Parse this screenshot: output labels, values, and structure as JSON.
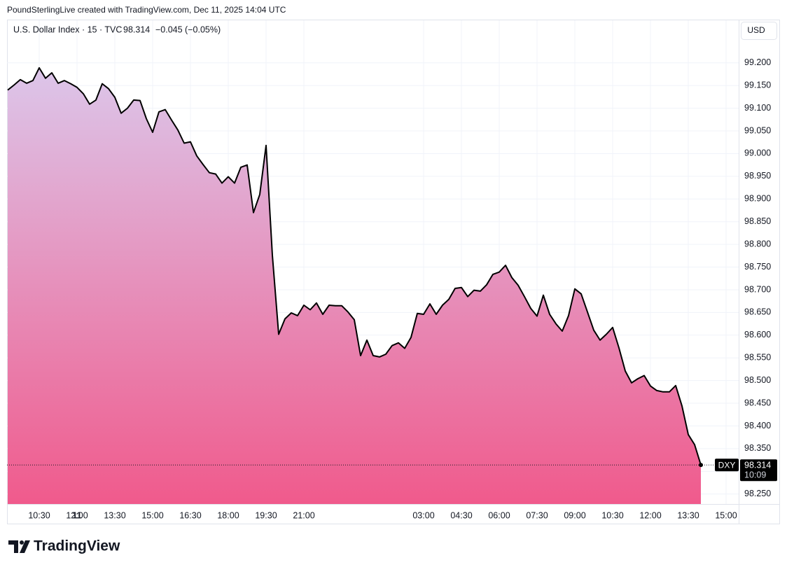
{
  "chart_data": {
    "type": "area",
    "credit": "PoundSterlingLive created with TradingView.com, Dec 11, 2025 14:04 UTC",
    "title": "U.S. Dollar Index · 15 · TVC",
    "change_label": "−0.045 (−0.05%)",
    "currency": "USD",
    "symbol": "DXY",
    "countdown": "10:09",
    "brand": "TradingView",
    "line_color": "#000000",
    "fill_top": "#dcc6ea",
    "fill_bottom": "#f05a8c",
    "grid": true,
    "xlim": [
      0,
      116
    ],
    "ylim": [
      98.228,
      99.249
    ],
    "xticks": [
      {
        "value": 5,
        "label": "10:30"
      },
      {
        "value": 11,
        "label": "12:00"
      },
      {
        "value": 17,
        "label": "13:30"
      },
      {
        "value": 23,
        "label": "15:00"
      },
      {
        "value": 29,
        "label": "16:30"
      },
      {
        "value": 35,
        "label": "18:00"
      },
      {
        "value": 41,
        "label": "19:30"
      },
      {
        "value": 47,
        "label": "21:00"
      },
      11,
      {
        "value": 66,
        "label": "03:00"
      },
      {
        "value": 72,
        "label": "04:30"
      },
      {
        "value": 78,
        "label": "06:00"
      },
      {
        "value": 84,
        "label": "07:30"
      },
      {
        "value": 90,
        "label": "09:00"
      },
      {
        "value": 96,
        "label": "10:30"
      },
      {
        "value": 102,
        "label": "12:00"
      },
      {
        "value": 108,
        "label": "13:30"
      },
      {
        "value": 114,
        "label": "15:00"
      }
    ],
    "yticks": [
      {
        "value": 98.25,
        "label": "98.250"
      },
      {
        "value": 98.3,
        "label": "98.300"
      },
      {
        "value": 98.35,
        "label": "98.350"
      },
      {
        "value": 98.4,
        "label": "98.400"
      },
      {
        "value": 98.45,
        "label": "98.450"
      },
      {
        "value": 98.5,
        "label": "98.500"
      },
      {
        "value": 98.55,
        "label": "98.550"
      },
      {
        "value": 98.6,
        "label": "98.600"
      },
      {
        "value": 98.65,
        "label": "98.650"
      },
      {
        "value": 98.7,
        "label": "98.700"
      },
      {
        "value": 98.75,
        "label": "98.750"
      },
      {
        "value": 98.8,
        "label": "98.800"
      },
      {
        "value": 98.85,
        "label": "98.850"
      },
      {
        "value": 98.9,
        "label": "98.900"
      },
      {
        "value": 98.95,
        "label": "98.950"
      },
      {
        "value": 99.0,
        "label": "99.000"
      },
      {
        "value": 99.05,
        "label": "99.050"
      },
      {
        "value": 99.1,
        "label": "99.100"
      },
      {
        "value": 99.15,
        "label": "99.150"
      },
      {
        "value": 99.2,
        "label": "99.200"
      }
    ],
    "x": [
      0,
      1,
      2,
      3,
      4,
      5,
      6,
      7,
      8,
      9,
      10,
      11,
      12,
      13,
      14,
      15,
      16,
      17,
      18,
      19,
      20,
      21,
      22,
      23,
      24,
      25,
      26,
      27,
      28,
      29,
      30,
      31,
      32,
      33,
      34,
      35,
      36,
      37,
      38,
      39,
      40,
      41,
      42,
      43,
      44,
      45,
      46,
      47,
      48,
      49,
      50,
      51,
      52,
      53,
      54,
      55,
      56,
      57,
      58,
      59,
      60,
      61,
      62,
      63,
      64,
      65,
      66,
      67,
      68,
      69,
      70,
      71,
      72,
      73,
      74,
      75,
      76,
      77,
      78,
      79,
      80,
      81,
      82,
      83,
      84,
      85,
      86,
      87,
      88,
      89,
      90,
      91,
      92,
      93,
      94,
      95,
      96,
      97,
      98,
      99,
      100,
      101,
      102,
      103,
      104,
      105,
      106,
      107,
      108,
      109,
      110
    ],
    "values": [
      99.14,
      99.151,
      99.163,
      99.155,
      99.161,
      99.189,
      99.166,
      99.178,
      99.155,
      99.161,
      99.154,
      99.146,
      99.132,
      99.109,
      99.118,
      99.154,
      99.143,
      99.124,
      99.089,
      99.1,
      99.118,
      99.117,
      99.077,
      99.047,
      99.092,
      99.097,
      99.074,
      99.052,
      99.023,
      99.026,
      98.995,
      98.976,
      98.958,
      98.955,
      98.935,
      98.949,
      98.935,
      98.97,
      98.975,
      98.87,
      98.91,
      99.018,
      98.776,
      98.602,
      98.636,
      98.649,
      98.643,
      98.666,
      98.656,
      98.671,
      98.646,
      98.666,
      98.665,
      98.665,
      98.651,
      98.634,
      98.555,
      98.589,
      98.555,
      98.552,
      98.558,
      98.577,
      98.583,
      98.571,
      98.595,
      98.648,
      98.646,
      98.669,
      98.646,
      98.666,
      98.679,
      98.703,
      98.705,
      98.685,
      98.699,
      98.697,
      98.711,
      98.734,
      98.739,
      98.754,
      98.727,
      98.71,
      98.685,
      98.659,
      98.642,
      98.688,
      98.646,
      98.625,
      98.609,
      98.643,
      98.702,
      98.691,
      98.651,
      98.611,
      98.589,
      98.602,
      98.617,
      98.572,
      98.521,
      98.495,
      98.504,
      98.511,
      98.488,
      98.478,
      98.475,
      98.475,
      98.489,
      98.444,
      98.381,
      98.359,
      98.314
    ]
  }
}
